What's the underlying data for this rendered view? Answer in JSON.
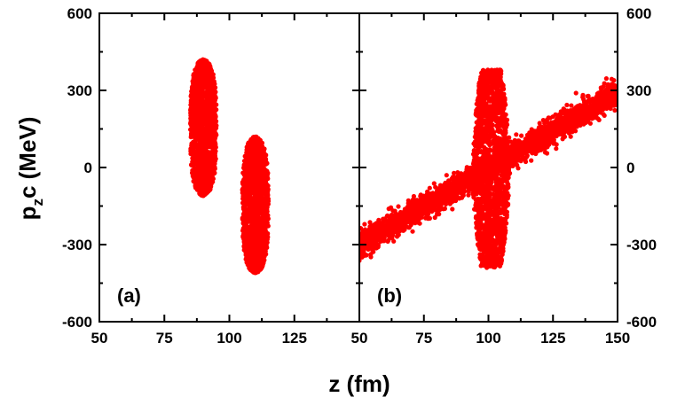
{
  "chart_data": [
    {
      "type": "scatter",
      "panel_label": "(a)",
      "xlabel": "z (fm)",
      "ylabel_main": "p",
      "ylabel_sub": "z",
      "ylabel_rest": "c (MeV)",
      "xlim": [
        50,
        150
      ],
      "ylim": [
        -600,
        600
      ],
      "x_ticks": [
        "50",
        "75",
        "100",
        "125"
      ],
      "y_ticks": [
        "600",
        "300",
        "0",
        "-300",
        "-600"
      ],
      "grid": false,
      "color": "#ff0000",
      "clusters": [
        {
          "name": "",
          "x_center": 90,
          "x_halfwidth": 5,
          "y_min": -110,
          "y_max": 420
        },
        {
          "name": "",
          "x_center": 110,
          "x_halfwidth": 5,
          "y_min": -410,
          "y_max": 120
        }
      ]
    },
    {
      "type": "scatter",
      "panel_label": "(b)",
      "xlim": [
        50,
        150
      ],
      "ylim": [
        -600,
        600
      ],
      "x_ticks": [
        "50",
        "75",
        "100",
        "125",
        "150"
      ],
      "y_ticks": [
        "600",
        "300",
        "0",
        "-300",
        "-600"
      ],
      "grid": false,
      "color": "#ff0000",
      "band": {
        "x_range": [
          50,
          150
        ],
        "y_at_x50": -300,
        "y_at_x150": 290,
        "halfwidth": 45
      },
      "vertical_cluster": {
        "x_range": [
          94,
          108
        ],
        "y_min": -390,
        "y_max": 380
      }
    }
  ]
}
